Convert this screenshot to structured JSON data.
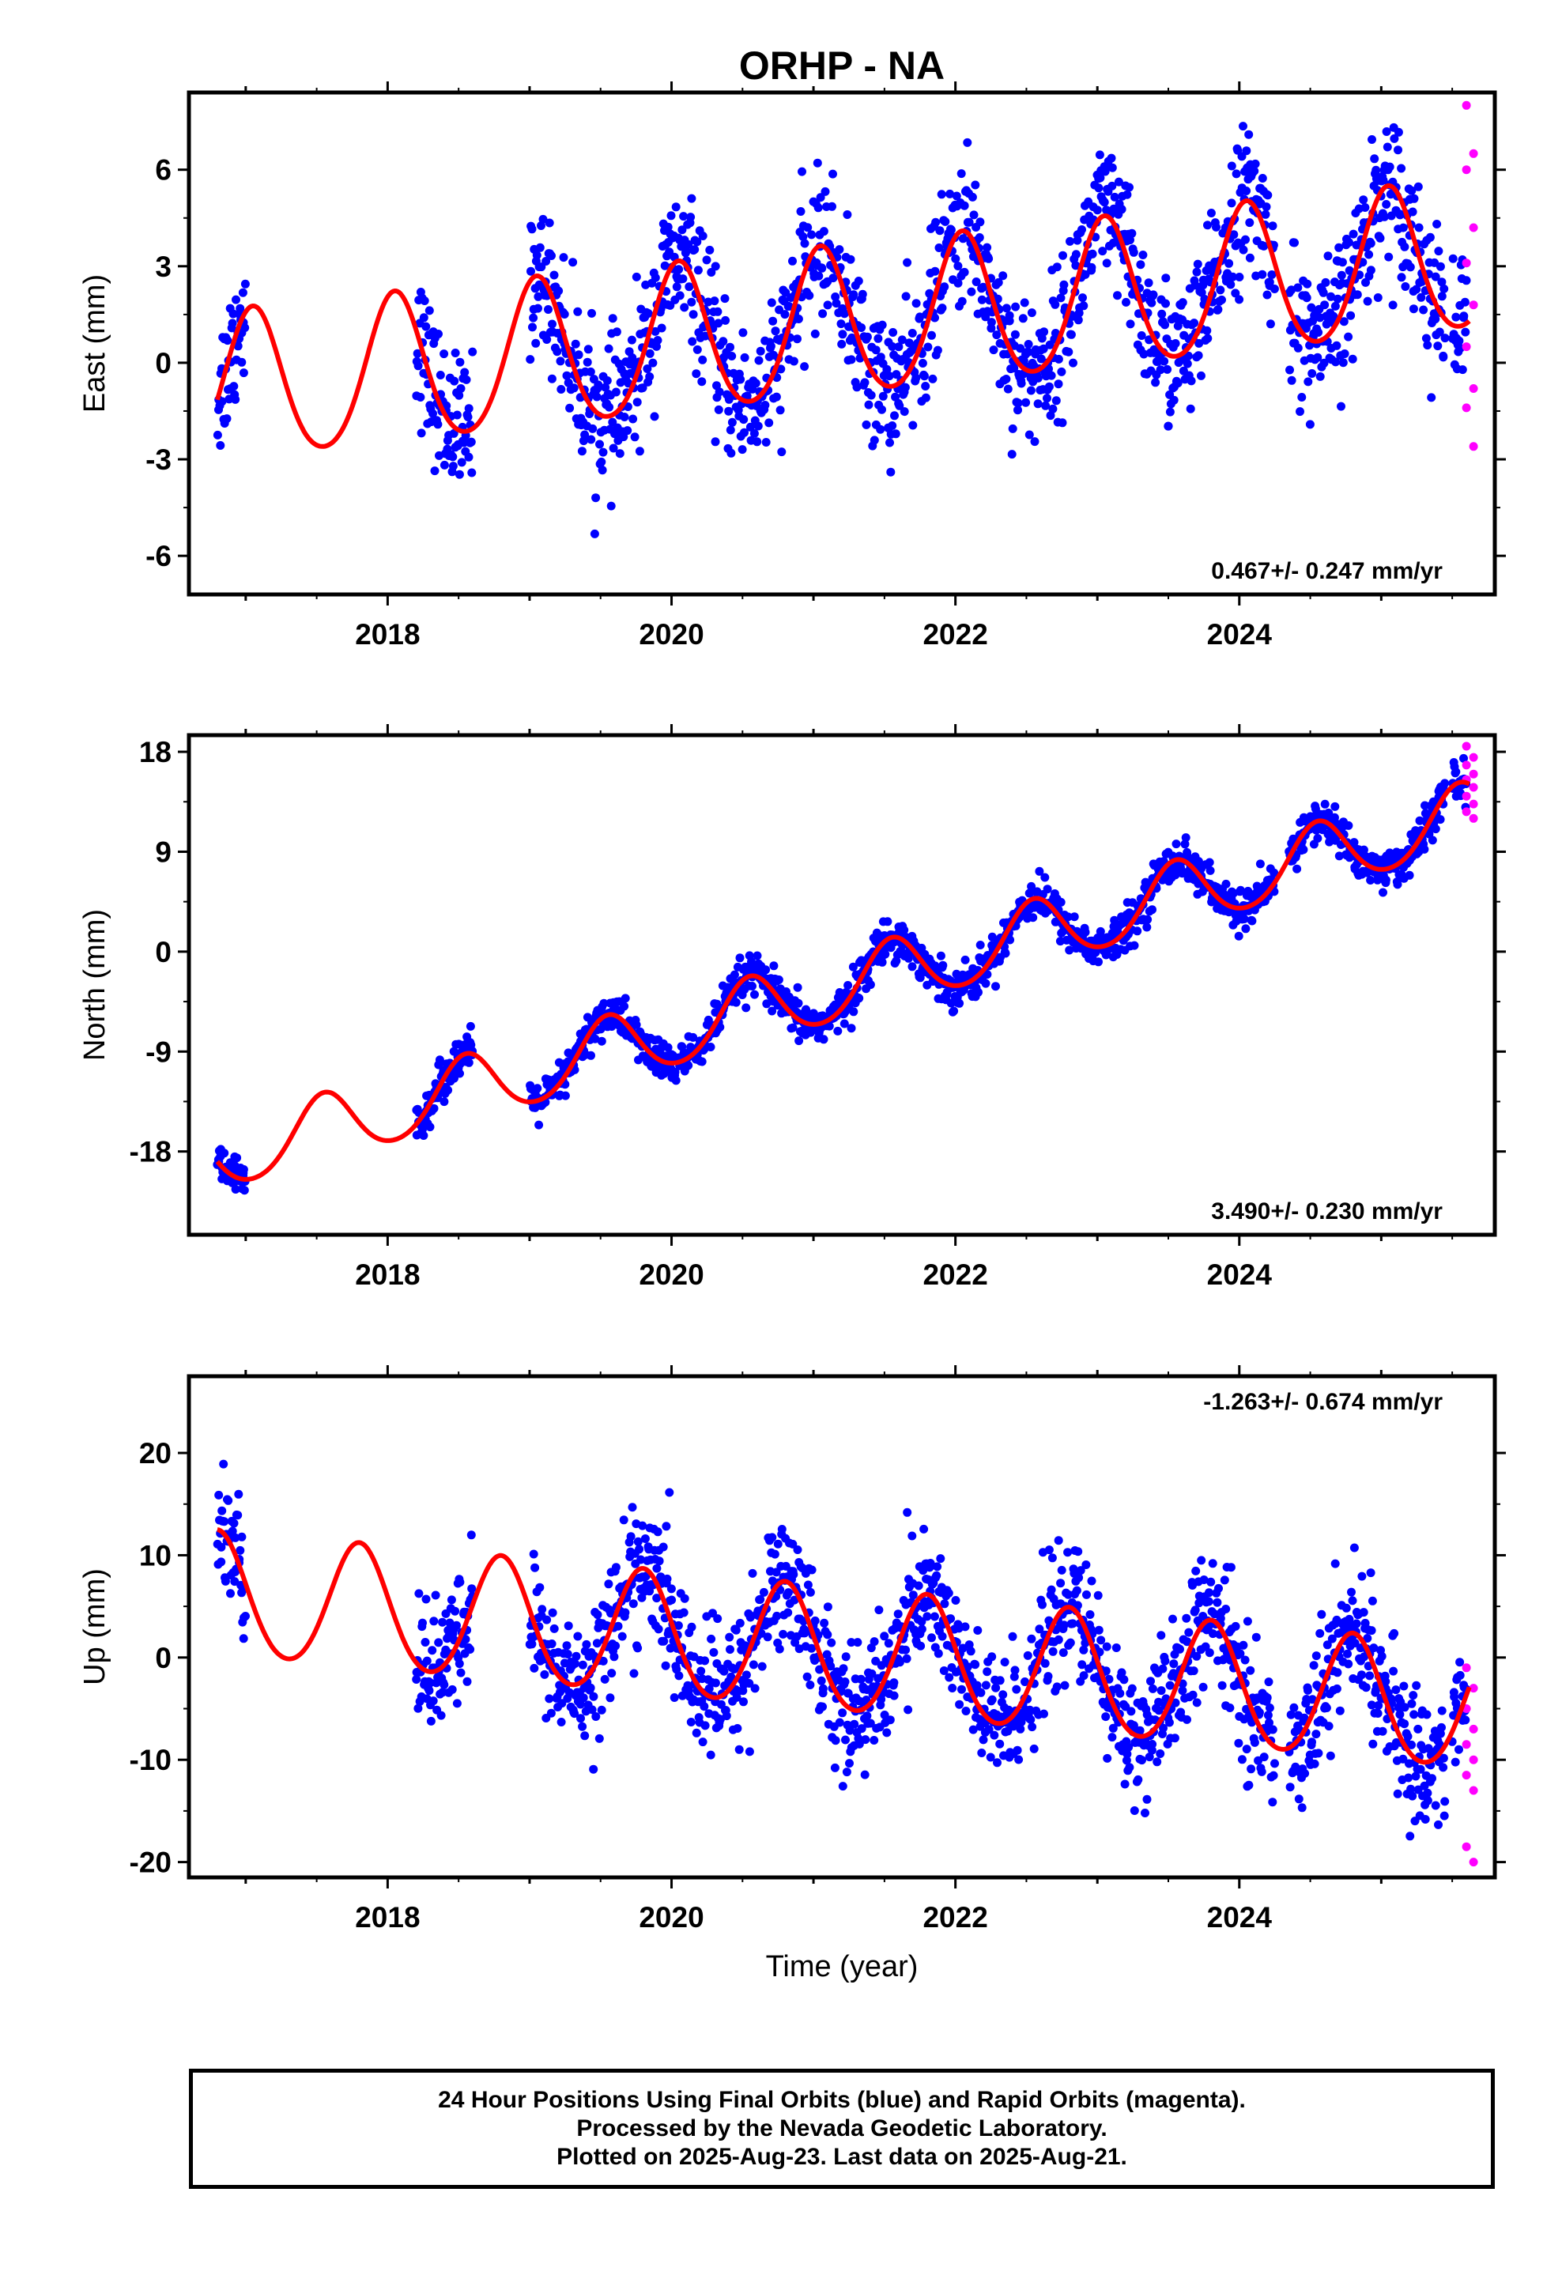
{
  "title": "ORHP - NA",
  "chart_data": [
    {
      "type": "scatter",
      "component": "East",
      "ylabel": "East (mm)",
      "xlabel": "",
      "xlim": [
        2016.6,
        2025.8
      ],
      "ylim": [
        -7.2,
        8.4
      ],
      "yticks": [
        6,
        3,
        0,
        -3,
        -6
      ],
      "yticklabels": [
        "6",
        "3",
        "0",
        "-3",
        "-6"
      ],
      "xticks": [
        2018,
        2020,
        2022,
        2024
      ],
      "xticklabels": [
        "2018",
        "2020",
        "2022",
        "2024"
      ],
      "rate": "0.467+/- 0.247 mm/yr",
      "rate_position": "bottom-right",
      "model": {
        "t0": 2016.8,
        "offset": -0.9,
        "slope": 0.467,
        "annual_amp": 2.3,
        "annual_phase_peak": 2017.05,
        "semiannual_amp": 0.25
      },
      "observed_segments": [
        [
          2016.8,
          2017.0
        ],
        [
          2018.2,
          2018.6
        ],
        [
          2019.0,
          2024.25
        ],
        [
          2024.35,
          2025.45
        ],
        [
          2025.5,
          2025.6
        ]
      ],
      "final_orbits": {
        "color": "#0000ff",
        "noise_sd": 1.1,
        "points_per_year": 220
      },
      "rapid_orbits": {
        "color": "#ff00ff",
        "x_from": 2025.6,
        "x_to": 2025.65,
        "y_values": [
          8.0,
          6.5,
          6.0,
          4.2,
          3.1,
          1.8,
          0.5,
          -0.8,
          -1.4,
          -2.6
        ]
      },
      "grid": false,
      "legend": "none"
    },
    {
      "type": "scatter",
      "component": "North",
      "ylabel": "North (mm)",
      "xlabel": "",
      "xlim": [
        2016.6,
        2025.8
      ],
      "ylim": [
        -25.5,
        19.5
      ],
      "yticks": [
        18,
        9,
        0,
        -9,
        -18
      ],
      "yticklabels": [
        "18",
        "9",
        "0",
        "-9",
        "-18"
      ],
      "xticks": [
        2018,
        2020,
        2022,
        2024
      ],
      "xticklabels": [
        "2018",
        "2020",
        "2022",
        "2024"
      ],
      "rate": "3.490+/- 0.230 mm/yr",
      "rate_position": "bottom-right",
      "model": {
        "t0": 2016.8,
        "offset": -18.6,
        "slope": 3.49,
        "annual_amp": 3.0,
        "annual_phase_peak": 2017.55,
        "semiannual_amp": 0.3
      },
      "observed_segments": [
        [
          2016.8,
          2017.0
        ],
        [
          2018.2,
          2018.6
        ],
        [
          2019.0,
          2024.25
        ],
        [
          2024.35,
          2025.45
        ],
        [
          2025.5,
          2025.6
        ]
      ],
      "final_orbits": {
        "color": "#0000ff",
        "noise_sd": 0.9,
        "points_per_year": 220
      },
      "rapid_orbits": {
        "color": "#ff00ff",
        "x_from": 2025.6,
        "x_to": 2025.65,
        "y_values": [
          18.5,
          17.5,
          16.8,
          16.0,
          15.5,
          14.8,
          14.0,
          13.3,
          12.6,
          12.0
        ]
      },
      "grid": false,
      "legend": "none"
    },
    {
      "type": "scatter",
      "component": "Up",
      "ylabel": "Up (mm)",
      "xlabel": "Time (year)",
      "xlim": [
        2016.6,
        2025.8
      ],
      "ylim": [
        -21.5,
        27.5
      ],
      "yticks": [
        20,
        10,
        0,
        -10,
        -20
      ],
      "yticklabels": [
        "20",
        "10",
        "0",
        "-10",
        "-20"
      ],
      "xticks": [
        2018,
        2020,
        2022,
        2024
      ],
      "xticklabels": [
        "2018",
        "2020",
        "2022",
        "2024"
      ],
      "rate": "-1.263+/- 0.674 mm/yr",
      "rate_position": "top-right",
      "model": {
        "t0": 2016.8,
        "offset": 6.0,
        "slope": -1.263,
        "annual_amp": 6.0,
        "annual_phase_peak": 2016.8,
        "semiannual_amp": 0.5
      },
      "observed_segments": [
        [
          2016.8,
          2017.0
        ],
        [
          2018.2,
          2018.6
        ],
        [
          2019.0,
          2024.25
        ],
        [
          2024.35,
          2025.45
        ],
        [
          2025.5,
          2025.6
        ]
      ],
      "final_orbits": {
        "color": "#0000ff",
        "noise_sd": 3.2,
        "points_per_year": 220
      },
      "rapid_orbits": {
        "color": "#ff00ff",
        "x_from": 2025.6,
        "x_to": 2025.65,
        "y_values": [
          -1.0,
          -3.0,
          -5.0,
          -7.0,
          -8.5,
          -10.0,
          -11.5,
          -13.0,
          -18.5,
          -20.0
        ]
      },
      "grid": false,
      "legend": "none"
    }
  ],
  "styles": {
    "model_color": "#ff0000",
    "axis_color": "#000000"
  },
  "footer": {
    "line1": "24 Hour Positions Using Final Orbits (blue) and Rapid Orbits (magenta).",
    "line2": "Processed by the Nevada Geodetic Laboratory.",
    "line3": "Plotted on 2025-Aug-23. Last data on 2025-Aug-21."
  }
}
